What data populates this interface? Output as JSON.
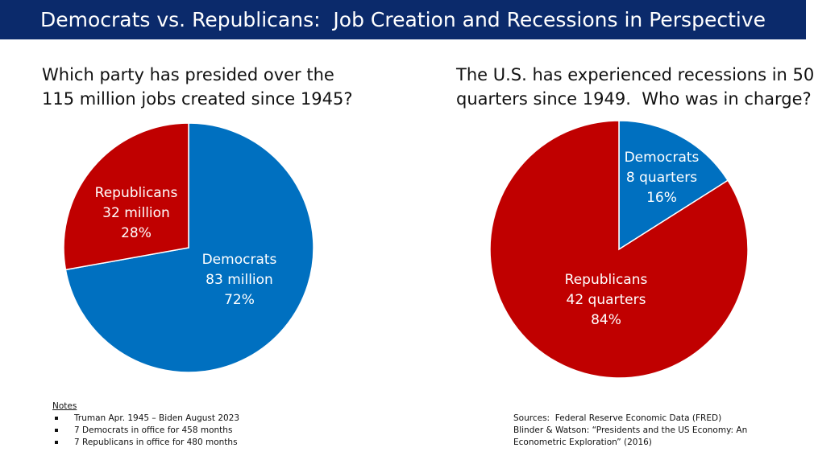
{
  "header": {
    "title": "Democrats vs. Republicans:  Job Creation and Recessions in Perspective"
  },
  "colors": {
    "banner": "#0b2a6b",
    "democrats": "#0070c0",
    "republicans": "#c00000"
  },
  "chart_data": [
    {
      "type": "pie",
      "title": "Which party has presided over the\n115 million jobs created since 1945?",
      "slices": [
        {
          "name": "Democrats",
          "value": 83,
          "display": "83 million",
          "percent": "72%",
          "color": "#0070c0"
        },
        {
          "name": "Republicans",
          "value": 32,
          "display": "32 million",
          "percent": "28%",
          "color": "#c00000"
        }
      ]
    },
    {
      "type": "pie",
      "title": "The U.S. has experienced recessions in 50\nquarters since 1949.  Who was in charge?",
      "slices": [
        {
          "name": "Democrats",
          "value": 8,
          "display": "8 quarters",
          "percent": "16%",
          "color": "#0070c0"
        },
        {
          "name": "Republicans",
          "value": 42,
          "display": "42 quarters",
          "percent": "84%",
          "color": "#c00000"
        }
      ]
    }
  ],
  "notes": {
    "heading": "Notes",
    "items": [
      "Truman Apr. 1945 – Biden August 2023",
      "7 Democrats in office for 458 months",
      "7 Republicans in office for 480 months"
    ]
  },
  "sources": {
    "text": "Sources:  Federal Reserve Economic Data (FRED)\nBlinder & Watson: “Presidents and the US Economy: An\nEconometric Exploration” (2016)"
  }
}
